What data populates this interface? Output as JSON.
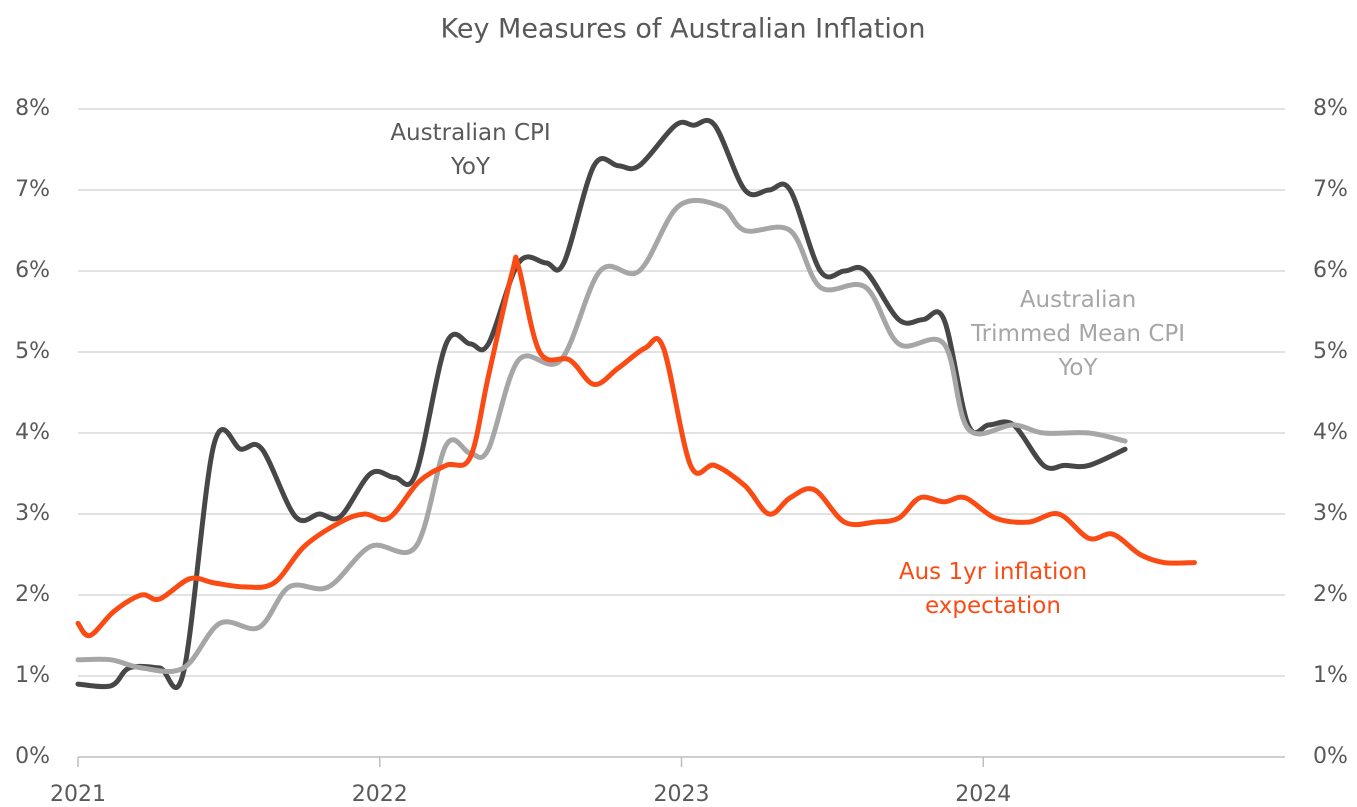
{
  "chart_data": {
    "type": "line",
    "title": "Key Measures of Australian Inflation",
    "xlim": [
      2021,
      2025
    ],
    "xticks": [
      2021,
      2022,
      2023,
      2024
    ],
    "ylim": [
      0,
      8
    ],
    "yticks": [
      {
        "value": 0,
        "label": "0%"
      },
      {
        "value": 1,
        "label": "1%"
      },
      {
        "value": 2,
        "label": "2%"
      },
      {
        "value": 3,
        "label": "3%"
      },
      {
        "value": 4,
        "label": "4%"
      },
      {
        "value": 5,
        "label": "5%"
      },
      {
        "value": 6,
        "label": "6%"
      },
      {
        "value": 7,
        "label": "7%"
      },
      {
        "value": 8,
        "label": "8%"
      }
    ],
    "y2lim": [
      0,
      8
    ],
    "y2ticks": [
      {
        "value": 0,
        "label": "0%"
      },
      {
        "value": 1,
        "label": "1%"
      },
      {
        "value": 2,
        "label": "2%"
      },
      {
        "value": 3,
        "label": "3%"
      },
      {
        "value": 4,
        "label": "4%"
      },
      {
        "value": 5,
        "label": "5%"
      },
      {
        "value": 6,
        "label": "6%"
      },
      {
        "value": 7,
        "label": "7%"
      },
      {
        "value": 8,
        "label": "8%"
      }
    ],
    "grid": true,
    "series": [
      {
        "name": "Australian CPI YoY",
        "color": "#474747",
        "x": [
          2021.0,
          2021.11,
          2021.17,
          2021.27,
          2021.35,
          2021.45,
          2021.54,
          2021.61,
          2021.72,
          2021.8,
          2021.87,
          2021.97,
          2022.05,
          2022.12,
          2022.22,
          2022.3,
          2022.36,
          2022.46,
          2022.55,
          2022.61,
          2022.71,
          2022.79,
          2022.86,
          2022.98,
          2023.04,
          2023.11,
          2023.21,
          2023.29,
          2023.36,
          2023.46,
          2023.54,
          2023.61,
          2023.72,
          2023.8,
          2023.87,
          2023.95,
          2024.02,
          2024.1,
          2024.2,
          2024.27,
          2024.35,
          2024.47
        ],
        "values": [
          0.9,
          0.88,
          1.1,
          1.1,
          1.05,
          3.85,
          3.8,
          3.8,
          2.97,
          3.0,
          2.97,
          3.5,
          3.45,
          3.5,
          5.1,
          5.1,
          5.1,
          6.1,
          6.1,
          6.1,
          7.3,
          7.3,
          7.3,
          7.8,
          7.8,
          7.8,
          7.0,
          7.0,
          7.0,
          6.0,
          6.0,
          6.0,
          5.4,
          5.4,
          5.4,
          4.1,
          4.1,
          4.1,
          3.6,
          3.6,
          3.6,
          3.8
        ]
      },
      {
        "name": "Australian Trimmed Mean CPI YoY",
        "color": "#a6a6a6",
        "x": [
          2021.0,
          2021.11,
          2021.21,
          2021.35,
          2021.47,
          2021.6,
          2021.7,
          2021.83,
          2021.97,
          2022.12,
          2022.22,
          2022.3,
          2022.36,
          2022.46,
          2022.6,
          2022.73,
          2022.86,
          2022.99,
          2023.13,
          2023.21,
          2023.36,
          2023.46,
          2023.61,
          2023.72,
          2023.87,
          2023.95,
          2024.1,
          2024.2,
          2024.35,
          2024.47
        ],
        "values": [
          1.2,
          1.2,
          1.1,
          1.1,
          1.65,
          1.6,
          2.1,
          2.1,
          2.6,
          2.6,
          3.85,
          3.75,
          3.8,
          4.9,
          4.9,
          6.0,
          6.0,
          6.8,
          6.8,
          6.5,
          6.5,
          5.8,
          5.8,
          5.1,
          5.1,
          4.05,
          4.1,
          4.0,
          4.0,
          3.9
        ]
      },
      {
        "name": "Aus 1yr inflation expectation",
        "color": "#fa4b14",
        "x": [
          2021.0,
          2021.04,
          2021.12,
          2021.21,
          2021.27,
          2021.37,
          2021.45,
          2021.55,
          2021.65,
          2021.75,
          2021.87,
          2021.95,
          2022.03,
          2022.13,
          2022.22,
          2022.3,
          2022.36,
          2022.44,
          2022.46,
          2022.53,
          2022.63,
          2022.71,
          2022.79,
          2022.88,
          2022.94,
          2023.03,
          2023.11,
          2023.21,
          2023.29,
          2023.36,
          2023.44,
          2023.54,
          2023.64,
          2023.72,
          2023.79,
          2023.87,
          2023.94,
          2024.04,
          2024.15,
          2024.25,
          2024.35,
          2024.43,
          2024.52,
          2024.6,
          2024.7
        ],
        "values": [
          1.65,
          1.5,
          1.8,
          2.0,
          1.95,
          2.2,
          2.15,
          2.1,
          2.15,
          2.6,
          2.9,
          3.0,
          2.95,
          3.4,
          3.6,
          3.7,
          4.7,
          6.0,
          6.05,
          5.0,
          4.9,
          4.6,
          4.8,
          5.05,
          5.05,
          3.6,
          3.6,
          3.35,
          3.0,
          3.2,
          3.3,
          2.9,
          2.9,
          2.95,
          3.2,
          3.15,
          3.2,
          2.95,
          2.9,
          3.0,
          2.7,
          2.75,
          2.5,
          2.4,
          2.4
        ]
      }
    ]
  }
}
